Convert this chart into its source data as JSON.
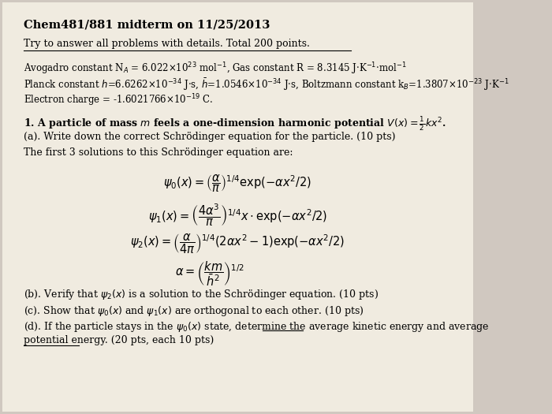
{
  "bg_color": "#d0c8c0",
  "paper_color": "#f0ebe0",
  "title": "Chem481/881 midterm on 11/25/2013",
  "subtitle": "Try to answer all problems with details. Total 200 points.",
  "constants_line1": "Avogadro constant N$_A$ = 6.022×10$^{23}$ mol$^{-1}$, Gas constant R = 8.3145 J·K$^{-1}$·mol$^{-1}$",
  "constants_line2": "Planck constant $h$=6.6262×10$^{-34}$ J·s, $\\bar{h}$=1.0546×10$^{-34}$ J·s, Boltzmann constant k$_B$=1.3807×10$^{-23}$ J·K$^{-1}$",
  "constants_line3": "Electron charge = -1.6021766×10$^{-19}$ C.",
  "problem1": "1. A particle of mass $\\bf{\\it{m}}$ feels a one-dimension harmonic potential $V(x) = \\frac{1}{2}kx^2$.",
  "part_a": "(a). Write down the correct Schrödinger equation for the particle. (10 pts)",
  "part_a2": "The first 3 solutions to this Schrödinger equation are:",
  "eq0": "$\\psi_0(x) = \\left(\\dfrac{\\alpha}{\\pi}\\right)^{1/4} \\exp(-\\alpha x^2/2)$",
  "eq1": "$\\psi_1(x) = \\left(\\dfrac{4\\alpha^3}{\\pi}\\right)^{1/4} x \\cdot \\exp(-\\alpha x^2/2)$",
  "eq2": "$\\psi_2(x) = \\left(\\dfrac{\\alpha}{4\\pi}\\right)^{1/4} (2\\alpha x^2 - 1)\\exp(-\\alpha x^2/2)$",
  "alpha_eq": "$\\alpha = \\left(\\dfrac{km}{\\bar{h}^2}\\right)^{1/2}$",
  "part_b": "(b). Verify that $\\psi_2(x)$ is a solution to the Schrödinger equation. (10 pts)",
  "part_c": "(c). Show that $\\psi_0(x)$ and $\\psi_1(x)$ are orthogonal to each other. (10 pts)",
  "part_d": "(d). If the particle stays in the $\\psi_0(x)$ state, determine the average kinetic energy and average",
  "part_d2": "potential energy. (20 pts, each 10 pts)",
  "font_size_title": 10.5,
  "font_size_body": 9.0,
  "font_size_eq": 10.5
}
